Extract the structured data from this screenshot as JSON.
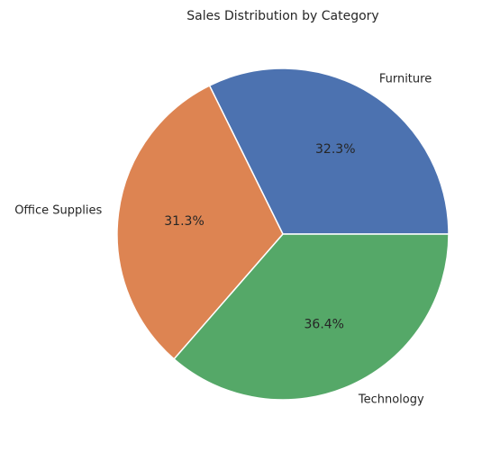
{
  "chart_data": {
    "type": "pie",
    "title": "Sales Distribution by Category",
    "categories": [
      "Furniture",
      "Office Supplies",
      "Technology"
    ],
    "values": [
      32.3,
      31.3,
      36.4
    ],
    "percent_labels": [
      "32.3%",
      "31.3%",
      "36.4%"
    ],
    "colors": [
      "#4C72B0",
      "#DD8452",
      "#55A868"
    ],
    "start_angle_deg": 0,
    "direction": "counterclockwise",
    "edge_color": "#ffffff"
  }
}
